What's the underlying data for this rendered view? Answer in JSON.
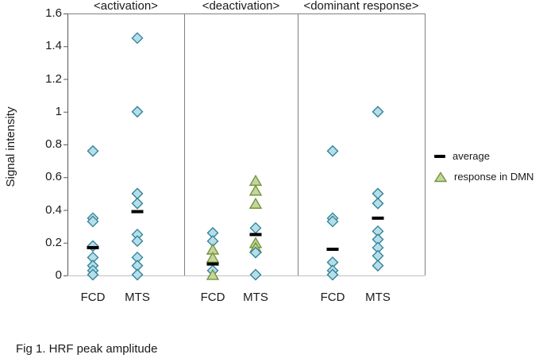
{
  "figure": {
    "caption": "Fig 1. HRF peak amplitude"
  },
  "colors": {
    "diamond_fill": "#b7dee8",
    "diamond_stroke": "#31849b",
    "triangle_fill": "#c3d69b",
    "triangle_stroke": "#77933c",
    "average_marker": "#000000",
    "axis_box": "#808080",
    "axis_left": "#595959",
    "baseline": "#c0c0c0",
    "text": "#1a1a1a"
  },
  "chart_data": {
    "type": "scatter",
    "title": "",
    "xlabel": "",
    "ylabel": "Signal intensity",
    "ylim": [
      0,
      1.6
    ],
    "grid": false,
    "legend_position": "right-middle",
    "yticks": [
      0,
      0.2,
      0.4,
      0.6,
      0.8,
      1,
      1.2,
      1.4,
      1.6
    ],
    "ytick_labels": [
      "0",
      "0.2",
      "0.4",
      "0.6",
      "0.8",
      "1",
      "1.2",
      "1.4",
      "1.6"
    ],
    "marker_series": [
      {
        "name": "individual response",
        "marker": "diamond"
      },
      {
        "name": "response in DMN",
        "marker": "triangle"
      },
      {
        "name": "average",
        "marker": "dash"
      }
    ],
    "panels": [
      {
        "title": "<activation>",
        "groups": [
          {
            "label": "FCD",
            "diamonds": [
              0.76,
              0.35,
              0.33,
              0.18,
              0.11,
              0.06,
              0.03,
              0.005
            ],
            "triangles": [],
            "average": 0.17
          },
          {
            "label": "MTS",
            "diamonds": [
              1.45,
              1.0,
              0.5,
              0.44,
              0.25,
              0.21,
              0.11,
              0.06,
              0.005
            ],
            "triangles": [],
            "average": 0.39
          }
        ]
      },
      {
        "title": "<deactivation>",
        "groups": [
          {
            "label": "FCD",
            "diamonds": [
              0.26,
              0.21,
              0.03
            ],
            "triangles": [
              0.16,
              0.11,
              0.005
            ],
            "average": 0.07
          },
          {
            "label": "MTS",
            "diamonds": [
              0.29,
              0.14,
              0.005
            ],
            "triangles": [
              0.58,
              0.52,
              0.44,
              0.2,
              0.17
            ],
            "average": 0.25
          }
        ]
      },
      {
        "title": "<dominant response>",
        "groups": [
          {
            "label": "FCD",
            "diamonds": [
              0.76,
              0.35,
              0.33,
              0.08,
              0.03,
              0.005
            ],
            "triangles": [],
            "average": 0.16
          },
          {
            "label": "MTS",
            "diamonds": [
              1.0,
              0.5,
              0.44,
              0.27,
              0.22,
              0.17,
              0.12,
              0.06
            ],
            "triangles": [],
            "average": 0.35
          }
        ]
      }
    ],
    "legend": [
      {
        "marker": "dash",
        "label": "average"
      },
      {
        "marker": "triangle",
        "label": "response in DMN"
      }
    ]
  }
}
